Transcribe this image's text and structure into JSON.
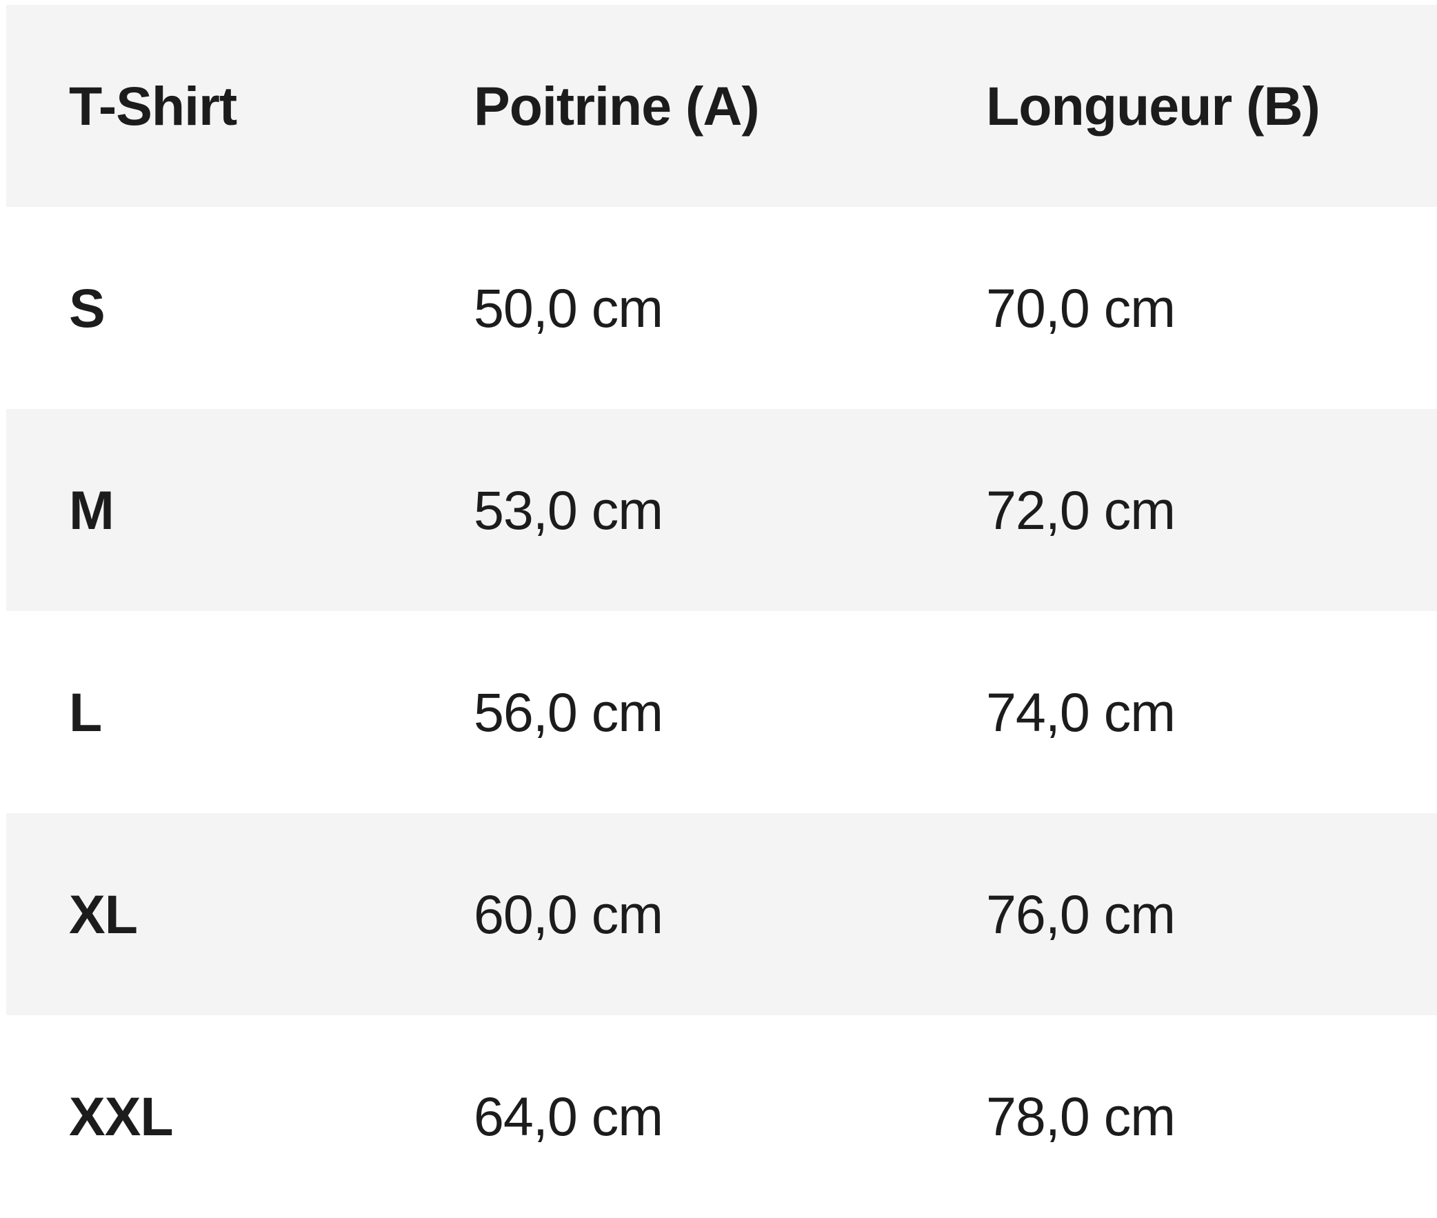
{
  "colors": {
    "shade": "#f4f4f4",
    "text": "#1c1c1c"
  },
  "table": {
    "headers": [
      "T-Shirt",
      "Poitrine (A)",
      "Longueur (B)"
    ],
    "rows": [
      [
        "S",
        "50,0 cm",
        "70,0 cm"
      ],
      [
        "M",
        "53,0 cm",
        "72,0 cm"
      ],
      [
        "L",
        "56,0 cm",
        "74,0 cm"
      ],
      [
        "XL",
        "60,0 cm",
        "76,0 cm"
      ],
      [
        "XXL",
        "64,0 cm",
        "78,0 cm"
      ]
    ]
  }
}
